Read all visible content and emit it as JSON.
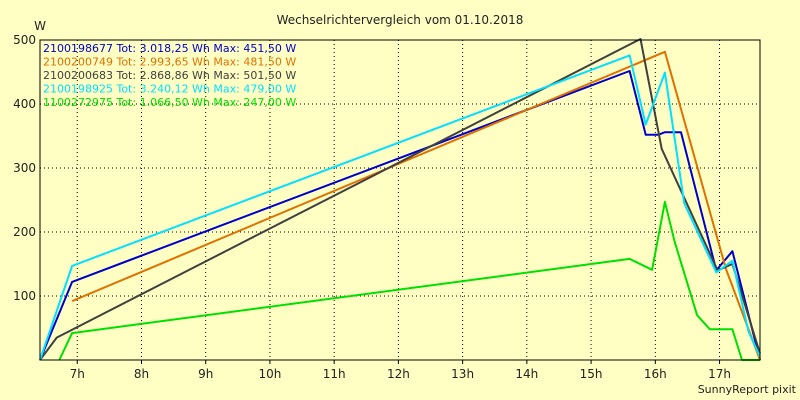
{
  "chart_data": {
    "type": "line",
    "title": "Wechselrichtervergleich vom 01.10.2018",
    "ylabel": "W",
    "xlabel": "",
    "ylim": [
      0,
      500
    ],
    "xlim": [
      6.42,
      17.63
    ],
    "y_ticks": [
      100,
      200,
      300,
      400,
      500
    ],
    "x_ticks": [
      {
        "value": 7,
        "label": "7h"
      },
      {
        "value": 8,
        "label": "8h"
      },
      {
        "value": 9,
        "label": "9h"
      },
      {
        "value": 10,
        "label": "10h"
      },
      {
        "value": 11,
        "label": "11h"
      },
      {
        "value": 12,
        "label": "12h"
      },
      {
        "value": 13,
        "label": "13h"
      },
      {
        "value": 14,
        "label": "14h"
      },
      {
        "value": 15,
        "label": "15h"
      },
      {
        "value": 16,
        "label": "16h"
      },
      {
        "value": 17,
        "label": "17h"
      }
    ],
    "grid": true,
    "legend_position": "top-left",
    "footer": "SunnyReport pixit",
    "series": [
      {
        "name": "2100198677",
        "legend": "2100198677 Tot: 3.018,25 Wh Max: 451,50 W",
        "color": "#0000cc",
        "points": [
          [
            6.42,
            0
          ],
          [
            6.92,
            122
          ],
          [
            15.6,
            451.5
          ],
          [
            15.85,
            352
          ],
          [
            16.05,
            352
          ],
          [
            16.15,
            356
          ],
          [
            16.4,
            356
          ],
          [
            16.95,
            140
          ],
          [
            17.2,
            170
          ],
          [
            17.63,
            0
          ]
        ]
      },
      {
        "name": "2100200749",
        "legend": "2100200749 Tot: 2.993,65 Wh Max: 481,50 W",
        "color": "#e07000",
        "points": [
          [
            6.92,
            92
          ],
          [
            16.15,
            481.5
          ],
          [
            17.1,
            142
          ],
          [
            17.63,
            0
          ]
        ]
      },
      {
        "name": "2100200683",
        "legend": "2100200683 Tot: 2.868,86 Wh Max: 501,50 W",
        "color": "#404040",
        "points": [
          [
            6.42,
            0
          ],
          [
            6.68,
            35
          ],
          [
            15.77,
            501.5
          ],
          [
            16.1,
            330
          ],
          [
            16.97,
            140
          ],
          [
            17.2,
            150
          ],
          [
            17.63,
            10
          ]
        ]
      },
      {
        "name": "2100198925",
        "legend": "2100198925 Tot: 3.240,12 Wh Max: 479,00 W",
        "color": "#00e0ff",
        "points": [
          [
            6.42,
            0
          ],
          [
            6.92,
            147
          ],
          [
            15.6,
            476
          ],
          [
            15.85,
            368
          ],
          [
            16.15,
            449
          ],
          [
            16.45,
            245
          ],
          [
            16.95,
            137
          ],
          [
            17.2,
            155
          ],
          [
            17.45,
            45
          ],
          [
            17.63,
            5
          ]
        ]
      },
      {
        "name": "1100272975",
        "legend": "1100272975 Tot: 1.066,50 Wh Max: 247,00 W",
        "color": "#00e000",
        "points": [
          [
            6.72,
            0
          ],
          [
            6.92,
            42
          ],
          [
            15.6,
            158
          ],
          [
            15.95,
            141
          ],
          [
            16.15,
            247
          ],
          [
            16.3,
            185
          ],
          [
            16.65,
            70
          ],
          [
            16.85,
            48
          ],
          [
            17.2,
            48
          ],
          [
            17.35,
            0
          ],
          [
            17.63,
            0
          ]
        ]
      }
    ]
  }
}
